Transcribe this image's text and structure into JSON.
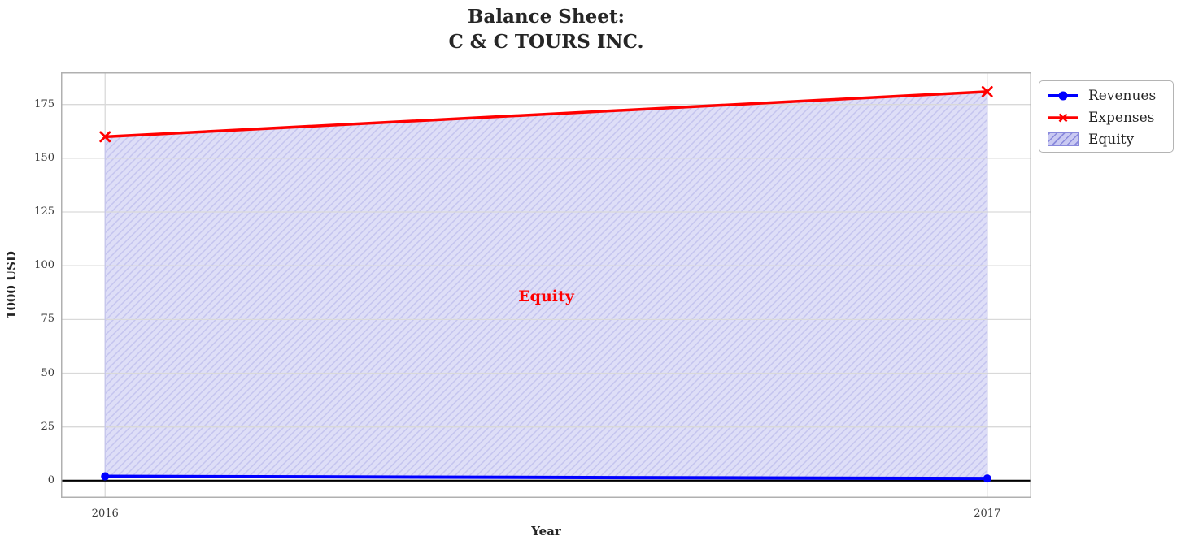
{
  "title": {
    "line1": "Balance Sheet:",
    "line2": "C & C TOURS INC."
  },
  "axes": {
    "x_label": "Year",
    "y_label": "1000 USD"
  },
  "legend": {
    "position": "outside upper right",
    "items": [
      {
        "label": "Revenues",
        "marker": "circle",
        "color": "#0000ff"
      },
      {
        "label": "Expenses",
        "marker": "x",
        "color": "#ff0000"
      },
      {
        "label": "Equity",
        "marker": "hatched-patch",
        "color": "#c9c9f2"
      }
    ]
  },
  "chart_data": {
    "type": "line",
    "title": "Balance Sheet:\nC & C TOURS INC.",
    "xlabel": "Year",
    "ylabel": "1000 USD",
    "x": [
      2016,
      2017
    ],
    "x_tick_labels": [
      "2016",
      "2017"
    ],
    "series": [
      {
        "name": "Revenues",
        "values": [
          2,
          1
        ],
        "color": "#0000ff",
        "marker": "circle",
        "line_width": 4
      },
      {
        "name": "Expenses",
        "values": [
          160,
          181
        ],
        "color": "#ff0000",
        "marker": "x",
        "line_width": 3.5
      }
    ],
    "fill_between": {
      "label": "Equity",
      "between": [
        "Revenues",
        "Expenses"
      ],
      "hatch": "/"
    },
    "annotation": {
      "text": "Equity",
      "x": 2016.5,
      "y": 86
    },
    "y_ticks": [
      0,
      25,
      50,
      75,
      100,
      125,
      150,
      175
    ],
    "xlim": [
      2015.95,
      2017.05
    ],
    "ylim": [
      -8,
      190
    ],
    "axhline": 0,
    "grid": true,
    "legend_position": "upper right outside"
  },
  "colors": {
    "revenues": "#0000ff",
    "expenses": "#ff0000",
    "fill": "#dedef7",
    "hatch": "#c4c4ef",
    "fill_strong": "#c9c9f2",
    "hatch_strong": "#8989dc",
    "grid": "#d9d9d9",
    "spine": "#b0b0b0",
    "axhline": "#000000",
    "annotation": "#ff0000",
    "tick_text": "#3b3b3b",
    "title_text": "#262626",
    "legend_border": "#b4b4b4",
    "background": "#ffffff"
  }
}
